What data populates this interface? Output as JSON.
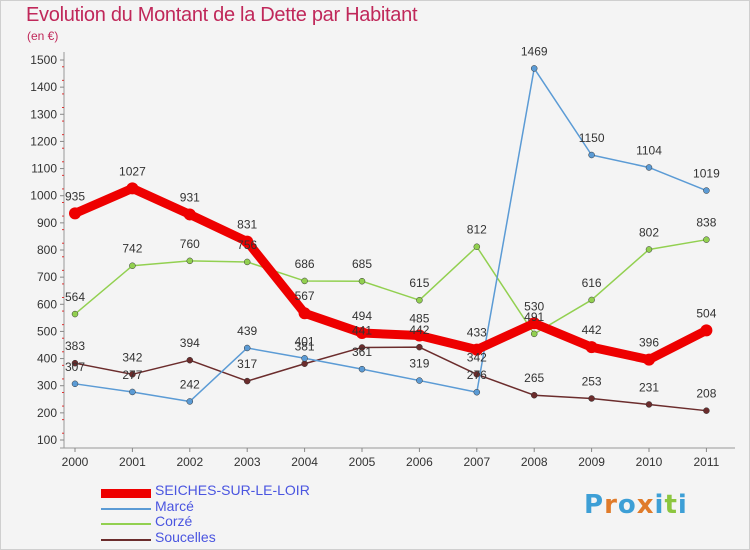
{
  "title": "Evolution du Montant de la Dette par Habitant",
  "subtitle": "(en €)",
  "logo": {
    "text": "Proxiti",
    "colors": [
      "#3d9fd6",
      "#e07b2a",
      "#3d9fd6",
      "#e07b2a",
      "#3d9fd6",
      "#8cc63f",
      "#3d9fd6"
    ]
  },
  "chart_data": {
    "type": "line",
    "categories": [
      "2000",
      "2001",
      "2002",
      "2003",
      "2004",
      "2005",
      "2006",
      "2007",
      "2008",
      "2009",
      "2010",
      "2011"
    ],
    "ylim": [
      100,
      1500
    ],
    "yticks": [
      100,
      200,
      300,
      400,
      500,
      600,
      700,
      800,
      900,
      1000,
      1100,
      1200,
      1300,
      1400,
      1500
    ],
    "grid": false,
    "legend_position": "bottom-left",
    "series": [
      {
        "name": "SEICHES-SUR-LE-LOIR",
        "color": "#ee0000",
        "values": [
          935,
          1027,
          931,
          831,
          567,
          494,
          485,
          433,
          530,
          442,
          396,
          504
        ]
      },
      {
        "name": "Marcé",
        "color": "#5b9bd5",
        "values": [
          307,
          277,
          242,
          439,
          401,
          361,
          319,
          276,
          1469,
          1150,
          1104,
          1019
        ]
      },
      {
        "name": "Corzé",
        "color": "#92d050",
        "values": [
          564,
          742,
          760,
          756,
          686,
          685,
          615,
          812,
          491,
          616,
          802,
          838
        ]
      },
      {
        "name": "Soucelles",
        "color": "#6b2c2c",
        "values": [
          383,
          342,
          394,
          317,
          381,
          441,
          442,
          342,
          265,
          253,
          231,
          208
        ]
      }
    ]
  }
}
